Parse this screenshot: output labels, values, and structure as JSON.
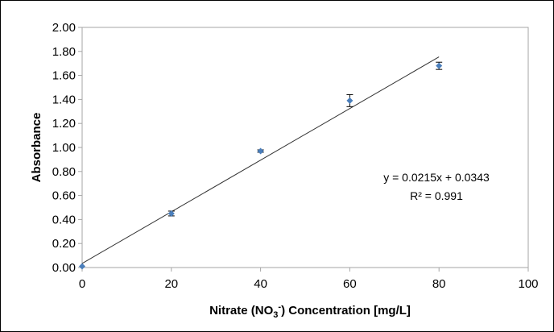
{
  "chart_data": {
    "type": "scatter",
    "title": "",
    "xlabel": "Nitrate (NO3-) Concentration [mg/L]",
    "xlabel_parts": {
      "prefix": "Nitrate (NO",
      "subscript": "3",
      "superscript": "-",
      "suffix": ") Concentration [mg/L]"
    },
    "ylabel": "Absorbance",
    "xlim": [
      0,
      100
    ],
    "ylim": [
      0,
      2
    ],
    "x_ticks": [
      0,
      20,
      40,
      60,
      80,
      100
    ],
    "x_tick_labels": [
      "0",
      "20",
      "40",
      "60",
      "80",
      "100"
    ],
    "y_ticks": [
      0,
      0.2,
      0.4,
      0.6,
      0.8,
      1.0,
      1.2,
      1.4,
      1.6,
      1.8,
      2.0
    ],
    "y_tick_labels": [
      "0.00",
      "0.20",
      "0.40",
      "0.60",
      "0.80",
      "1.00",
      "1.20",
      "1.40",
      "1.60",
      "1.80",
      "2.00"
    ],
    "grid": false,
    "legend": "none",
    "series": [
      {
        "x": [
          0,
          20,
          40,
          60,
          80
        ],
        "y": [
          0.01,
          0.45,
          0.97,
          1.39,
          1.68
        ],
        "error": [
          0.0,
          0.02,
          0.01,
          0.05,
          0.03
        ],
        "marker_color": "#4a7ebb",
        "error_color": "#000000"
      }
    ],
    "trendline": {
      "slope": 0.0215,
      "intercept": 0.0343,
      "x_range": [
        0,
        80
      ],
      "color": "#333333"
    },
    "annotations": {
      "equation": "y = 0.0215x + 0.0343",
      "r_squared": "R² = 0.991"
    }
  }
}
